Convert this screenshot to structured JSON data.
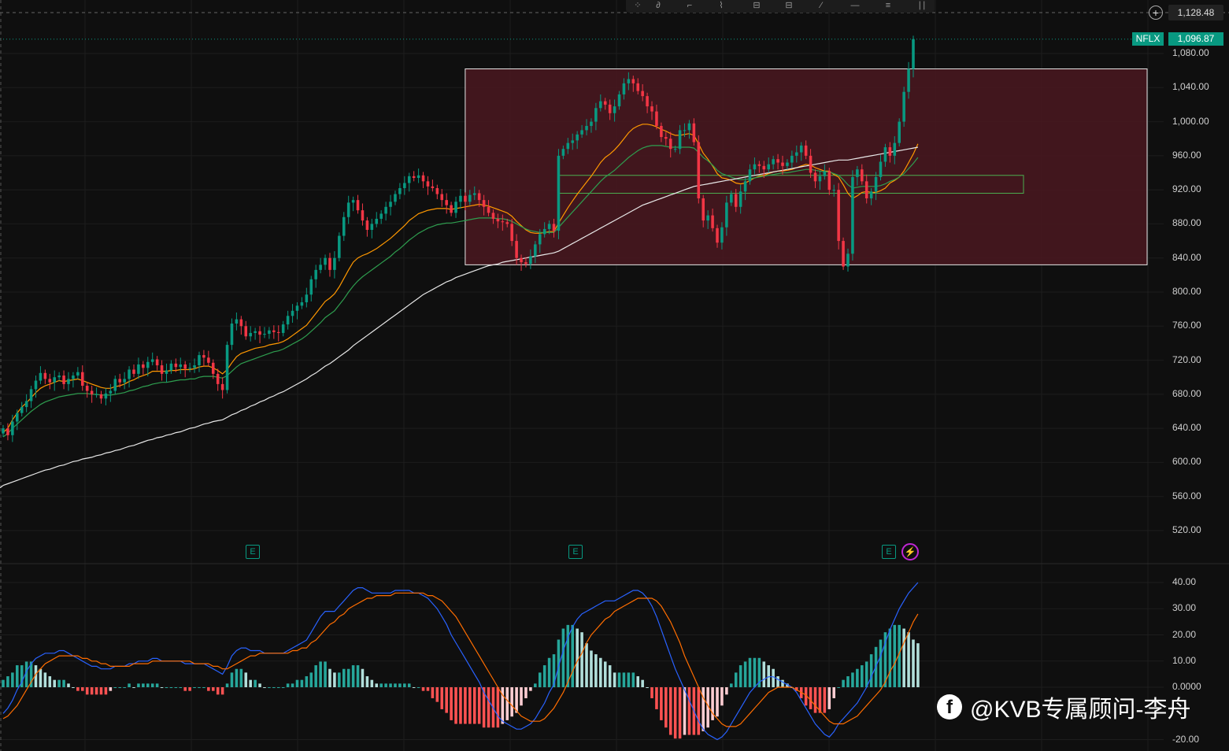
{
  "toolbar": {
    "tools": [
      "pointer-icon",
      "curve-icon",
      "path-icon",
      "brush-icon",
      "ruler-icon",
      "measure-icon",
      "pen-icon",
      "line-icon",
      "lines-icon",
      "indicator-icon"
    ]
  },
  "price_axis": {
    "top_value": "1,128.48",
    "ticks": [
      "1,080.00",
      "1,040.00",
      "1,000.00",
      "960.00",
      "920.00",
      "880.00",
      "840.00",
      "800.00",
      "760.00",
      "720.00",
      "680.00",
      "640.00",
      "600.00",
      "560.00",
      "520.00"
    ]
  },
  "symbol_badge": {
    "symbol": "NFLX",
    "price": "1,096.87"
  },
  "macd_axis": {
    "ticks": [
      "40.00",
      "30.00",
      "20.00",
      "10.00",
      "0.0000",
      "-20.00"
    ]
  },
  "earnings_markers": [
    "E",
    "E",
    "E"
  ],
  "watermark": {
    "icon": "facebook-icon",
    "text": "@KVB专属顾问-李舟"
  },
  "colors": {
    "up": "#089981",
    "down": "#f23645",
    "ema_fast": "#ff9800",
    "ema_slow": "#2e9e4f",
    "sma_long": "#e8e8e8",
    "macd_line": "#2962ff",
    "signal_line": "#ff6d00",
    "zone_fill": "#4a1820",
    "zone_stroke": "#e8e8e8",
    "band_stroke": "#4caf50"
  },
  "chart_data": [
    {
      "type": "candlestick",
      "title": "",
      "ylim": [
        500,
        1130
      ],
      "grid": true,
      "last_price": 1096.87,
      "closes": [
        640,
        632,
        648,
        658,
        665,
        672,
        686,
        696,
        705,
        698,
        694,
        700,
        702,
        692,
        698,
        702,
        706,
        690,
        684,
        680,
        680,
        675,
        681,
        684,
        698,
        694,
        698,
        709,
        704,
        715,
        711,
        718,
        721,
        714,
        704,
        708,
        716,
        712,
        715,
        710,
        711,
        714,
        726,
        723,
        717,
        704,
        692,
        685,
        738,
        763,
        768,
        760,
        748,
        752,
        754,
        750,
        751,
        755,
        753,
        752,
        762,
        772,
        778,
        784,
        788,
        797,
        815,
        826,
        832,
        840,
        826,
        840,
        866,
        888,
        905,
        908,
        896,
        884,
        873,
        880,
        886,
        892,
        900,
        906,
        915,
        922,
        928,
        936,
        934,
        937,
        930,
        924,
        922,
        915,
        908,
        902,
        893,
        906,
        913,
        906,
        914,
        916,
        908,
        900,
        893,
        886,
        883,
        882,
        880,
        860,
        840,
        835,
        833,
        842,
        856,
        868,
        874,
        880,
        872,
        960,
        968,
        975,
        978,
        985,
        990,
        995,
        1000,
        1016,
        1024,
        1020,
        1010,
        1018,
        1032,
        1045,
        1050,
        1045,
        1036,
        1030,
        1018,
        1012,
        995,
        982,
        980,
        968,
        968,
        990,
        990,
        998,
        976,
        910,
        884,
        890,
        875,
        858,
        876,
        905,
        915,
        900,
        918,
        930,
        944,
        950,
        948,
        944,
        950,
        956,
        952,
        948,
        952,
        960,
        964,
        972,
        960,
        940,
        930,
        936,
        942,
        920,
        920,
        860,
        830,
        845,
        935,
        944,
        930,
        910,
        918,
        935,
        953,
        970,
        960,
        975,
        1000,
        1035,
        1062,
        1096.87
      ]
    },
    {
      "type": "line",
      "title": "",
      "series": [
        {
          "values": [
            635,
            640,
            650,
            658,
            665,
            670,
            676,
            682,
            687,
            690,
            692,
            694,
            696,
            695,
            696,
            697,
            698,
            696,
            694,
            692,
            690,
            688,
            687,
            687,
            689,
            690,
            692,
            695,
            697,
            700,
            702,
            704,
            707,
            707,
            707,
            707,
            708,
            708,
            709,
            709,
            709,
            710,
            712,
            713,
            713,
            711,
            708,
            704,
            709,
            717,
            724,
            728,
            730,
            732,
            734,
            735,
            736,
            738,
            739,
            740,
            742,
            745,
            749,
            753,
            757,
            761,
            768,
            775,
            782,
            789,
            793,
            798,
            806,
            816,
            826,
            835,
            840,
            843,
            845,
            848,
            851,
            855,
            859,
            863,
            868,
            873,
            878,
            884,
            888,
            892,
            894,
            896,
            897,
            898,
            898,
            898,
            897,
            898,
            899,
            900,
            901,
            902,
            903,
            902,
            901,
            899,
            897,
            895,
            893,
            889,
            883,
            878,
            873,
            870,
            869,
            869,
            870,
            871,
            871,
            881,
            890,
            899,
            907,
            915,
            922,
            929,
            936,
            944,
            952,
            958,
            962,
            967,
            973,
            980,
            987,
            992,
            995,
            997,
            997,
            996,
            994,
            991,
            989,
            986,
            984,
            984,
            985,
            986,
            984,
            974,
            963,
            956,
            948,
            939,
            934,
            933,
            931,
            928,
            927,
            928,
            931,
            934,
            936,
            937,
            939,
            941,
            942,
            942,
            943,
            944,
            946,
            948,
            950,
            949,
            946,
            944,
            942,
            942,
            938,
            935,
            926,
            916,
            910,
            913,
            917,
            918,
            917,
            917,
            919,
            922,
            928,
            931,
            935,
            942,
            952,
            962,
            974
          ]
        },
        {
          "values": [
            630,
            634,
            640,
            645,
            650,
            655,
            660,
            664,
            668,
            671,
            673,
            675,
            677,
            678,
            679,
            680,
            681,
            681,
            681,
            680,
            680,
            679,
            679,
            679,
            680,
            681,
            682,
            684,
            685,
            687,
            689,
            690,
            692,
            693,
            694,
            694,
            695,
            696,
            697,
            697,
            698,
            698,
            700,
            701,
            701,
            701,
            700,
            699,
            702,
            707,
            712,
            716,
            718,
            720,
            722,
            724,
            726,
            728,
            730,
            731,
            733,
            736,
            739,
            742,
            745,
            749,
            754,
            759,
            764,
            770,
            774,
            778,
            785,
            792,
            800,
            807,
            813,
            818,
            822,
            826,
            830,
            834,
            838,
            842,
            847,
            851,
            856,
            861,
            865,
            869,
            872,
            875,
            877,
            879,
            880,
            881,
            881,
            882,
            883,
            884,
            885,
            886,
            887,
            887,
            887,
            887,
            886,
            886,
            885,
            883,
            880,
            877,
            874,
            872,
            871,
            870,
            870,
            870,
            870,
            876,
            882,
            888,
            894,
            900,
            906,
            912,
            918,
            924,
            930,
            935,
            939,
            943,
            948,
            953,
            958,
            962,
            966,
            969,
            971,
            972,
            972,
            972,
            971,
            970,
            970,
            970,
            970,
            970,
            969,
            964,
            958,
            954,
            949,
            943,
            939,
            937,
            935,
            933,
            932,
            932,
            933,
            934,
            935,
            936,
            937,
            938,
            939,
            940,
            940,
            941,
            942,
            943,
            944,
            944,
            943,
            942,
            941,
            941,
            939,
            937,
            932,
            926,
            922,
            923,
            924,
            924,
            924,
            924,
            925,
            927,
            930,
            932,
            935,
            939,
            945,
            951,
            958
          ]
        },
        {
          "values": [
            573,
            575,
            577,
            579,
            581,
            583,
            585,
            587,
            589,
            591,
            592,
            594,
            596,
            597,
            599,
            601,
            602,
            604,
            605,
            606,
            608,
            609,
            611,
            612,
            614,
            615,
            617,
            619,
            620,
            622,
            624,
            626,
            627,
            629,
            630,
            632,
            633,
            635,
            636,
            638,
            640,
            641,
            643,
            645,
            646,
            648,
            649,
            650,
            653,
            656,
            658,
            661,
            663,
            666,
            668,
            671,
            673,
            676,
            678,
            681,
            683,
            686,
            689,
            692,
            695,
            698,
            702,
            705,
            709,
            713,
            716,
            720,
            724,
            728,
            732,
            737,
            741,
            745,
            749,
            753,
            757,
            761,
            765,
            769,
            773,
            777,
            781,
            785,
            789,
            793,
            797,
            800,
            803,
            806,
            809,
            812,
            814,
            817,
            819,
            821,
            823,
            825,
            827,
            829,
            831,
            832,
            833,
            835,
            836,
            837,
            838,
            839,
            840,
            841,
            842,
            843,
            844,
            845,
            846,
            848,
            851,
            854,
            857,
            860,
            863,
            866,
            869,
            872,
            875,
            878,
            881,
            884,
            887,
            890,
            893,
            896,
            899,
            902,
            904,
            906,
            908,
            910,
            912,
            914,
            916,
            918,
            920,
            922,
            924,
            925,
            926,
            927,
            928,
            929,
            930,
            931,
            932,
            933,
            934,
            935,
            936,
            937,
            938,
            939,
            940,
            941,
            942,
            943,
            944,
            945,
            946,
            947,
            948,
            949,
            950,
            951,
            952,
            953,
            954,
            955,
            955,
            955,
            956,
            957,
            958,
            959,
            960,
            961,
            962,
            963,
            964,
            965,
            966,
            967,
            968,
            969,
            970
          ]
        }
      ],
      "zones": [
        {
          "y_low": 832,
          "y_high": 1062
        },
        {
          "y_low": 916,
          "y_high": 937
        }
      ]
    },
    {
      "type": "bar",
      "title": "",
      "ylim": [
        -24,
        45
      ],
      "macd": [
        -10,
        -8,
        -5,
        -1,
        2,
        6,
        9,
        11,
        12,
        13,
        13,
        13,
        14,
        14,
        13,
        12,
        11,
        10,
        9,
        8,
        8,
        7,
        7,
        7,
        8,
        8,
        8,
        9,
        9,
        10,
        10,
        10,
        11,
        11,
        10,
        10,
        10,
        10,
        10,
        9,
        9,
        9,
        9,
        9,
        8,
        7,
        6,
        5,
        8,
        12,
        14,
        15,
        15,
        14,
        14,
        14,
        13,
        13,
        13,
        13,
        13,
        14,
        15,
        16,
        17,
        18,
        21,
        24,
        27,
        29,
        29,
        29,
        31,
        33,
        35,
        37,
        38,
        38,
        37,
        36,
        36,
        36,
        36,
        36,
        37,
        37,
        37,
        37,
        36,
        36,
        35,
        34,
        32,
        30,
        27,
        24,
        20,
        17,
        14,
        11,
        8,
        5,
        2,
        -2,
        -5,
        -8,
        -11,
        -13,
        -14,
        -15,
        -16,
        -16,
        -15,
        -14,
        -12,
        -9,
        -6,
        -2,
        1,
        8,
        14,
        19,
        23,
        26,
        28,
        29,
        30,
        31,
        32,
        33,
        33,
        33,
        34,
        35,
        36,
        37,
        37,
        36,
        34,
        31,
        27,
        22,
        17,
        12,
        7,
        3,
        -1,
        -5,
        -9,
        -13,
        -16,
        -18,
        -19,
        -20,
        -19,
        -17,
        -14,
        -11,
        -8,
        -5,
        -2,
        0,
        2,
        3,
        4,
        4,
        3,
        2,
        1,
        0,
        -2,
        -5,
        -8,
        -11,
        -14,
        -16,
        -18,
        -19,
        -17,
        -14,
        -12,
        -10,
        -8,
        -6,
        -3,
        0,
        4,
        8,
        12,
        17,
        22,
        26,
        30,
        33,
        36,
        38,
        40
      ],
      "signal": [
        -12,
        -11,
        -9,
        -7,
        -4,
        -1,
        2,
        5,
        7,
        9,
        10,
        11,
        12,
        12,
        12,
        12,
        12,
        11,
        11,
        10,
        10,
        9,
        9,
        8,
        8,
        8,
        8,
        8,
        9,
        9,
        9,
        9,
        10,
        10,
        10,
        10,
        10,
        10,
        10,
        10,
        10,
        9,
        9,
        9,
        9,
        8,
        8,
        7,
        7,
        8,
        9,
        10,
        11,
        12,
        12,
        13,
        13,
        13,
        13,
        13,
        13,
        13,
        14,
        14,
        15,
        15,
        17,
        18,
        20,
        22,
        24,
        25,
        27,
        28,
        30,
        31,
        32,
        33,
        34,
        34,
        35,
        35,
        35,
        35,
        36,
        36,
        36,
        36,
        36,
        36,
        36,
        35,
        35,
        34,
        33,
        31,
        29,
        27,
        24,
        21,
        18,
        15,
        12,
        9,
        6,
        3,
        0,
        -3,
        -5,
        -7,
        -9,
        -11,
        -12,
        -13,
        -13,
        -13,
        -12,
        -10,
        -8,
        -5,
        -2,
        2,
        6,
        10,
        13,
        17,
        20,
        22,
        24,
        26,
        27,
        29,
        30,
        31,
        32,
        33,
        34,
        34,
        34,
        34,
        33,
        31,
        28,
        25,
        21,
        17,
        12,
        8,
        4,
        0,
        -4,
        -7,
        -10,
        -12,
        -14,
        -15,
        -15,
        -15,
        -14,
        -12,
        -10,
        -8,
        -6,
        -4,
        -2,
        -1,
        0,
        0,
        0,
        0,
        -1,
        -2,
        -3,
        -5,
        -7,
        -9,
        -11,
        -13,
        -14,
        -14,
        -14,
        -13,
        -12,
        -11,
        -9,
        -7,
        -5,
        -3,
        -1,
        2,
        6,
        9,
        13,
        17,
        21,
        25,
        28
      ]
    }
  ]
}
